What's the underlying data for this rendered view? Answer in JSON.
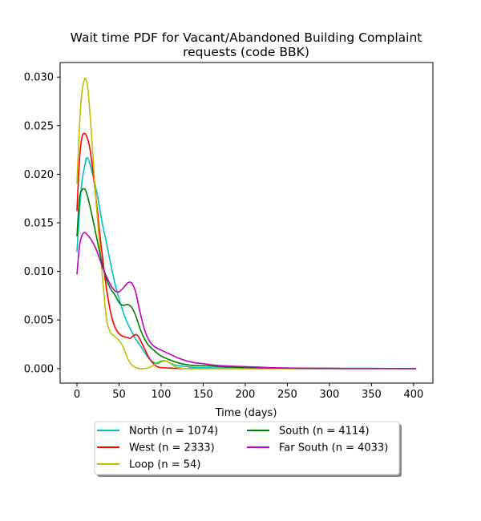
{
  "chart_data": {
    "type": "line",
    "title_lines": [
      "Wait time PDF for Vacant/Abandoned Building Complaint",
      "requests (code BBK)"
    ],
    "xlabel": "Time (days)",
    "ylabel": "",
    "xlim": [
      -20,
      423
    ],
    "ylim": [
      -0.0015,
      0.0315
    ],
    "x_ticks": [
      0,
      50,
      100,
      150,
      200,
      250,
      300,
      350,
      400
    ],
    "x_tick_labels": [
      "0",
      "50",
      "100",
      "150",
      "200",
      "250",
      "300",
      "350",
      "400"
    ],
    "y_ticks": [
      0.0,
      0.005,
      0.01,
      0.015,
      0.02,
      0.025,
      0.03
    ],
    "y_tick_labels": [
      "0.000",
      "0.005",
      "0.010",
      "0.015",
      "0.020",
      "0.025",
      "0.030"
    ],
    "grid": false,
    "legend_position": "below plot, two columns",
    "series": [
      {
        "name": "North (n = 1074)",
        "color": "#00bfbf",
        "x": [
          0,
          5,
          10,
          12,
          15,
          20,
          25,
          30,
          35,
          40,
          45,
          50,
          55,
          60,
          65,
          70,
          75,
          80,
          85,
          90,
          95,
          100,
          105,
          110,
          115,
          120,
          130,
          140,
          150,
          170,
          200,
          250,
          300,
          350,
          403
        ],
        "y": [
          0.012,
          0.0185,
          0.0212,
          0.0217,
          0.0212,
          0.0195,
          0.0175,
          0.015,
          0.013,
          0.0108,
          0.0088,
          0.0072,
          0.0058,
          0.0047,
          0.0038,
          0.003,
          0.0024,
          0.0017,
          0.0011,
          0.0007,
          0.0005,
          0.0007,
          0.0008,
          0.0006,
          0.0004,
          0.0003,
          0.0002,
          0.0001,
          0.0001,
          5e-05,
          2e-05,
          1e-05,
          0.0,
          0.0,
          0.0
        ]
      },
      {
        "name": "West (n = 2333)",
        "color": "#ff0000",
        "x": [
          0,
          3,
          6,
          9,
          12,
          15,
          18,
          21,
          24,
          27,
          30,
          35,
          40,
          45,
          50,
          55,
          60,
          63,
          66,
          70,
          73,
          76,
          80,
          85,
          90,
          95,
          100,
          110,
          120,
          130,
          150,
          200,
          250,
          300,
          350,
          403
        ],
        "y": [
          0.0162,
          0.0215,
          0.0238,
          0.0242,
          0.0238,
          0.0228,
          0.021,
          0.0188,
          0.0165,
          0.014,
          0.0117,
          0.0083,
          0.0058,
          0.0043,
          0.0036,
          0.0033,
          0.0032,
          0.0031,
          0.0033,
          0.0035,
          0.0033,
          0.0028,
          0.0021,
          0.0012,
          0.0006,
          0.0002,
          0.0001,
          5e-05,
          2e-05,
          0.0,
          0.0,
          0.0,
          0.0,
          0.0,
          0.0,
          0.0
        ]
      },
      {
        "name": "Loop (n = 54)",
        "color": "#bfbf00",
        "x": [
          0,
          3,
          6,
          9,
          11,
          13,
          15,
          18,
          21,
          24,
          27,
          30,
          33,
          36,
          40,
          45,
          50,
          55,
          60,
          65,
          70,
          75,
          80,
          85,
          90,
          95,
          100,
          105,
          110,
          115,
          120,
          130,
          150,
          200,
          250,
          300,
          350,
          403
        ],
        "y": [
          0.019,
          0.025,
          0.0285,
          0.0298,
          0.0297,
          0.0288,
          0.0268,
          0.0232,
          0.0192,
          0.0158,
          0.0128,
          0.0098,
          0.0068,
          0.0047,
          0.0037,
          0.0033,
          0.0029,
          0.0022,
          0.0011,
          0.0004,
          0.0001,
          0.0,
          0.0,
          0.0001,
          0.0003,
          0.0006,
          0.0008,
          0.0008,
          0.0006,
          0.0003,
          0.0001,
          0.0,
          0.0,
          0.0,
          0.0,
          0.0,
          0.0,
          0.0
        ]
      },
      {
        "name": "South (n = 4114)",
        "color": "#008000",
        "x": [
          0,
          3,
          6,
          8,
          10,
          13,
          16,
          20,
          25,
          30,
          35,
          40,
          45,
          50,
          55,
          60,
          65,
          70,
          75,
          80,
          85,
          90,
          95,
          100,
          110,
          120,
          130,
          140,
          150,
          170,
          200,
          250,
          300,
          350,
          403
        ],
        "y": [
          0.0136,
          0.0175,
          0.0184,
          0.0185,
          0.0184,
          0.0176,
          0.0165,
          0.0149,
          0.0128,
          0.0108,
          0.0092,
          0.0082,
          0.0076,
          0.0068,
          0.0065,
          0.0066,
          0.0063,
          0.0054,
          0.0041,
          0.0031,
          0.0024,
          0.002,
          0.0016,
          0.0013,
          0.0009,
          0.0006,
          0.0004,
          0.0003,
          0.0003,
          0.0002,
          0.0001,
          5e-05,
          2e-05,
          1e-05,
          0.0
        ]
      },
      {
        "name": "Far South (n = 4033)",
        "color": "#bf00bf",
        "x": [
          0,
          3,
          6,
          9,
          12,
          15,
          20,
          25,
          30,
          35,
          40,
          45,
          50,
          55,
          60,
          63,
          66,
          70,
          75,
          80,
          85,
          90,
          95,
          100,
          110,
          120,
          130,
          140,
          150,
          170,
          200,
          250,
          300,
          350,
          403
        ],
        "y": [
          0.0097,
          0.0126,
          0.0137,
          0.014,
          0.0138,
          0.0135,
          0.0128,
          0.0118,
          0.0105,
          0.0095,
          0.0086,
          0.008,
          0.0079,
          0.0083,
          0.0088,
          0.0089,
          0.0087,
          0.0078,
          0.0058,
          0.0041,
          0.003,
          0.0024,
          0.0021,
          0.0019,
          0.0015,
          0.0011,
          0.0008,
          0.0006,
          0.0005,
          0.0003,
          0.0002,
          5e-05,
          2e-05,
          1e-05,
          0.0
        ]
      }
    ]
  }
}
